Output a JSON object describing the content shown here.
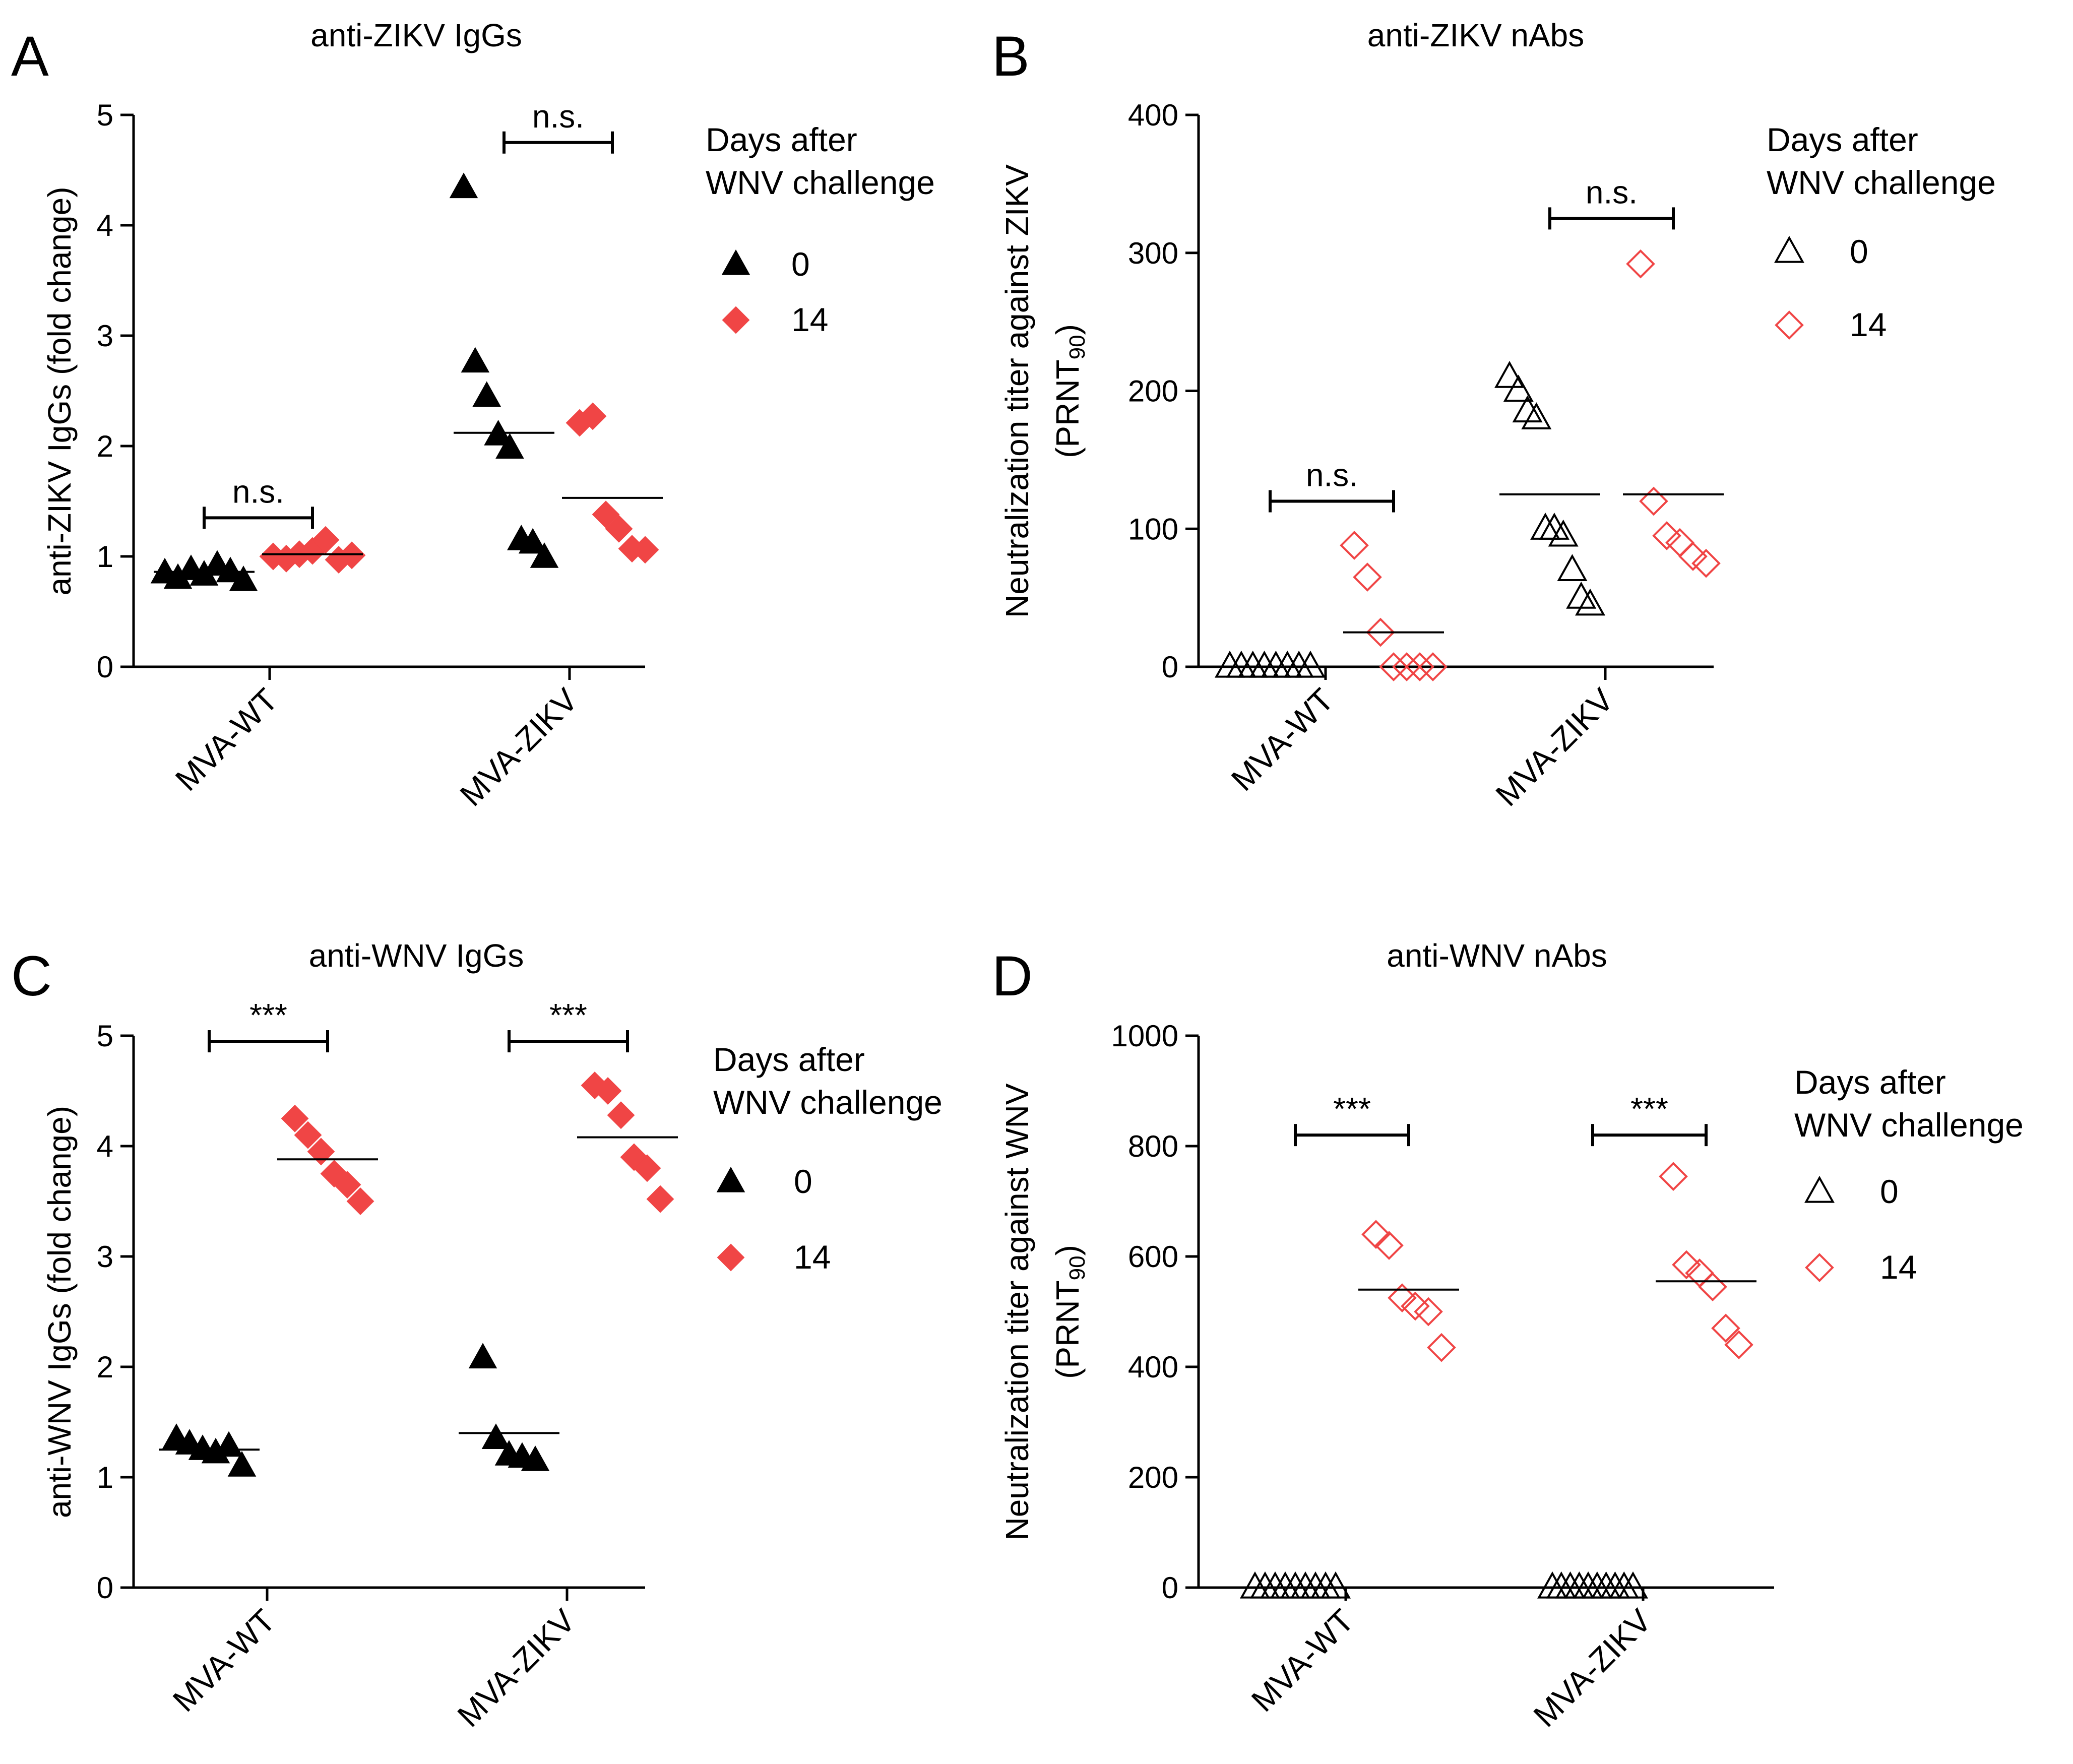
{
  "colors": {
    "day0": "#000000",
    "day14": "#f04545",
    "axis": "#000000"
  },
  "legend": {
    "title_line1": "Days after",
    "title_line2": "WNV challenge"
  },
  "chart_data": [
    {
      "id": "A",
      "letter": "A",
      "type": "scatter",
      "title": "anti-ZIKV IgGs",
      "ylabel_line1": "anti-ZIKV IgGs (fold change)",
      "ylabel_line2": "",
      "marker": "filled",
      "ylim": [
        0,
        5
      ],
      "yticks": [
        0,
        1,
        2,
        3,
        4,
        5
      ],
      "ytick_labels": [
        "0",
        "1",
        "2",
        "3",
        "4",
        "5"
      ],
      "categories": [
        "MVA-WT",
        "MVA-ZIKV"
      ],
      "legend_entries": [
        "0",
        "14"
      ],
      "series": [
        {
          "name": "0",
          "values": [
            [
              0.85,
              0.8,
              0.88,
              0.83,
              0.92,
              0.86,
              0.78
            ],
            [
              4.34,
              2.76,
              2.45,
              2.1,
              1.98,
              1.15,
              1.12,
              0.99
            ]
          ],
          "means": [
            0.86,
            2.12
          ]
        },
        {
          "name": "14",
          "values": [
            [
              1.0,
              0.98,
              1.02,
              1.05,
              1.15,
              0.97,
              1.01
            ],
            [
              2.21,
              2.27,
              1.38,
              1.25,
              1.07,
              1.06
            ]
          ],
          "means": [
            1.02,
            1.53
          ]
        }
      ],
      "significance": [
        "n.s.",
        "n.s."
      ],
      "bracket_y": [
        1.35,
        4.75
      ]
    },
    {
      "id": "B",
      "letter": "B",
      "type": "scatter",
      "title": "anti-ZIKV nAbs",
      "ylabel_line1": "Neutralization titer against ZIKV",
      "ylabel_line2": "(PRNT90)",
      "marker": "open",
      "ylim": [
        0,
        400
      ],
      "yticks": [
        0,
        100,
        200,
        300,
        400
      ],
      "ytick_labels": [
        "0",
        "100",
        "200",
        "300",
        "400"
      ],
      "categories": [
        "MVA-WT",
        "MVA-ZIKV"
      ],
      "legend_entries": [
        "0",
        "14"
      ],
      "series": [
        {
          "name": "0",
          "values": [
            [
              0,
              0,
              0,
              0,
              0,
              0,
              0,
              0
            ],
            [
              210,
              200,
              185,
              180,
              100,
              100,
              95,
              70,
              50,
              45
            ]
          ],
          "means": [
            0,
            125
          ]
        },
        {
          "name": "14",
          "values": [
            [
              88,
              65,
              25,
              0,
              0,
              0,
              0
            ],
            [
              292,
              120,
              95,
              90,
              80,
              75
            ]
          ],
          "means": [
            25,
            125
          ]
        }
      ],
      "significance": [
        "n.s.",
        "n.s."
      ],
      "bracket_y": [
        120,
        325
      ]
    },
    {
      "id": "C",
      "letter": "C",
      "type": "scatter",
      "title": "anti-WNV IgGs",
      "ylabel_line1": "anti-WNV IgGs (fold change)",
      "ylabel_line2": "",
      "marker": "filled",
      "ylim": [
        0,
        5
      ],
      "yticks": [
        0,
        1,
        2,
        3,
        4,
        5
      ],
      "ytick_labels": [
        "0",
        "1",
        "2",
        "3",
        "4",
        "5"
      ],
      "categories": [
        "MVA-WT",
        "MVA-ZIKV"
      ],
      "legend_entries": [
        "0",
        "14"
      ],
      "series": [
        {
          "name": "0",
          "values": [
            [
              1.35,
              1.3,
              1.25,
              1.22,
              1.28,
              1.1
            ],
            [
              2.08,
              1.35,
              1.2,
              1.18,
              1.15
            ]
          ],
          "means": [
            1.25,
            1.4
          ]
        },
        {
          "name": "14",
          "values": [
            [
              4.25,
              4.1,
              3.95,
              3.75,
              3.65,
              3.5
            ],
            [
              4.55,
              4.5,
              4.28,
              3.9,
              3.8,
              3.52
            ]
          ],
          "means": [
            3.88,
            4.08
          ]
        }
      ],
      "significance": [
        "***",
        "***"
      ],
      "bracket_y": [
        4.95,
        4.95
      ]
    },
    {
      "id": "D",
      "letter": "D",
      "type": "scatter",
      "title": "anti-WNV nAbs",
      "ylabel_line1": "Neutralization titer against WNV",
      "ylabel_line2": "(PRNT90)",
      "marker": "open",
      "ylim": [
        0,
        1000
      ],
      "yticks": [
        0,
        200,
        400,
        600,
        800,
        1000
      ],
      "ytick_labels": [
        "0",
        "200",
        "400",
        "600",
        "800",
        "1000"
      ],
      "categories": [
        "MVA-WT",
        "MVA-ZIKV"
      ],
      "legend_entries": [
        "0",
        "14"
      ],
      "series": [
        {
          "name": "0",
          "values": [
            [
              0,
              0,
              0,
              0,
              0,
              0,
              0,
              0,
              0
            ],
            [
              0,
              0,
              0,
              0,
              0,
              0,
              0,
              0,
              0,
              0
            ]
          ],
          "means": [
            0,
            0
          ]
        },
        {
          "name": "14",
          "values": [
            [
              640,
              620,
              525,
              510,
              500,
              435
            ],
            [
              745,
              585,
              570,
              545,
              470,
              440
            ]
          ],
          "means": [
            540,
            555
          ]
        }
      ],
      "significance": [
        "***",
        "***"
      ],
      "bracket_y": [
        820,
        820
      ]
    }
  ]
}
